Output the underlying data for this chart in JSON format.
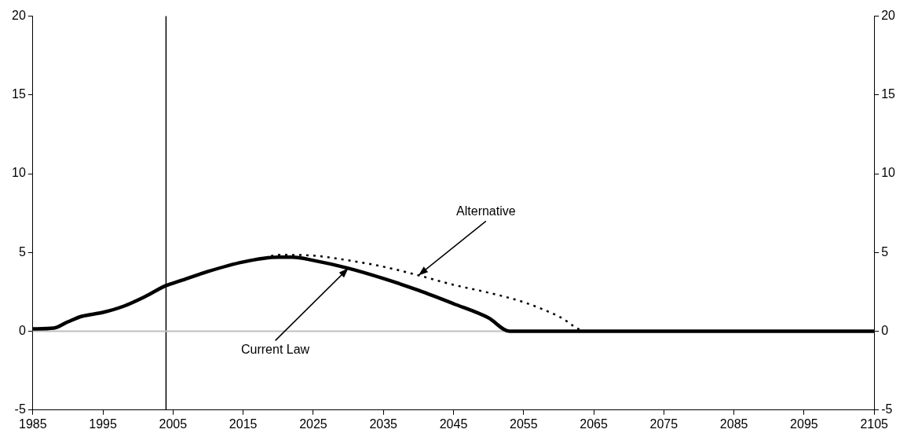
{
  "chart_data": {
    "type": "line",
    "series": [
      {
        "name": "Current Law",
        "color": "#000000",
        "line_style": "solid",
        "x": [
          1985,
          1988,
          1990,
          1992,
          1995,
          1998,
          2001,
          2004,
          2006,
          2010,
          2015,
          2020,
          2022,
          2025,
          2030,
          2035,
          2040,
          2045,
          2050,
          2053,
          2105
        ],
        "values": [
          0.15,
          0.2,
          0.6,
          0.95,
          1.2,
          1.6,
          2.2,
          2.9,
          3.2,
          3.8,
          4.4,
          4.7,
          4.7,
          4.5,
          4.0,
          3.35,
          2.6,
          1.75,
          0.85,
          0,
          0
        ]
      },
      {
        "name": "Alternative",
        "color": "#000000",
        "line_style": "dotted",
        "x": [
          2018,
          2020,
          2025,
          2030,
          2035,
          2040,
          2045,
          2050,
          2055,
          2060,
          2064,
          2105
        ],
        "values": [
          4.65,
          4.85,
          4.8,
          4.5,
          4.1,
          3.55,
          2.95,
          2.45,
          1.85,
          0.95,
          0,
          0
        ]
      }
    ],
    "xlim": [
      1985,
      2105
    ],
    "xticks": [
      1985,
      1995,
      2005,
      2015,
      2025,
      2035,
      2045,
      2055,
      2065,
      2075,
      2085,
      2095,
      2105
    ],
    "ylim": [
      -5,
      20
    ],
    "yticks": [
      -5,
      0,
      5,
      10,
      15,
      20
    ],
    "y2lim": [
      -5,
      20
    ],
    "y2ticks": [
      -5,
      0,
      5,
      10,
      15,
      20
    ],
    "ref_lines": [
      {
        "axis": "x",
        "value": 2004,
        "color": "#000000"
      },
      {
        "axis": "y",
        "value": 0,
        "color": "#c0c0c0"
      }
    ],
    "grid": false,
    "legend": false,
    "marker": "none"
  }
}
